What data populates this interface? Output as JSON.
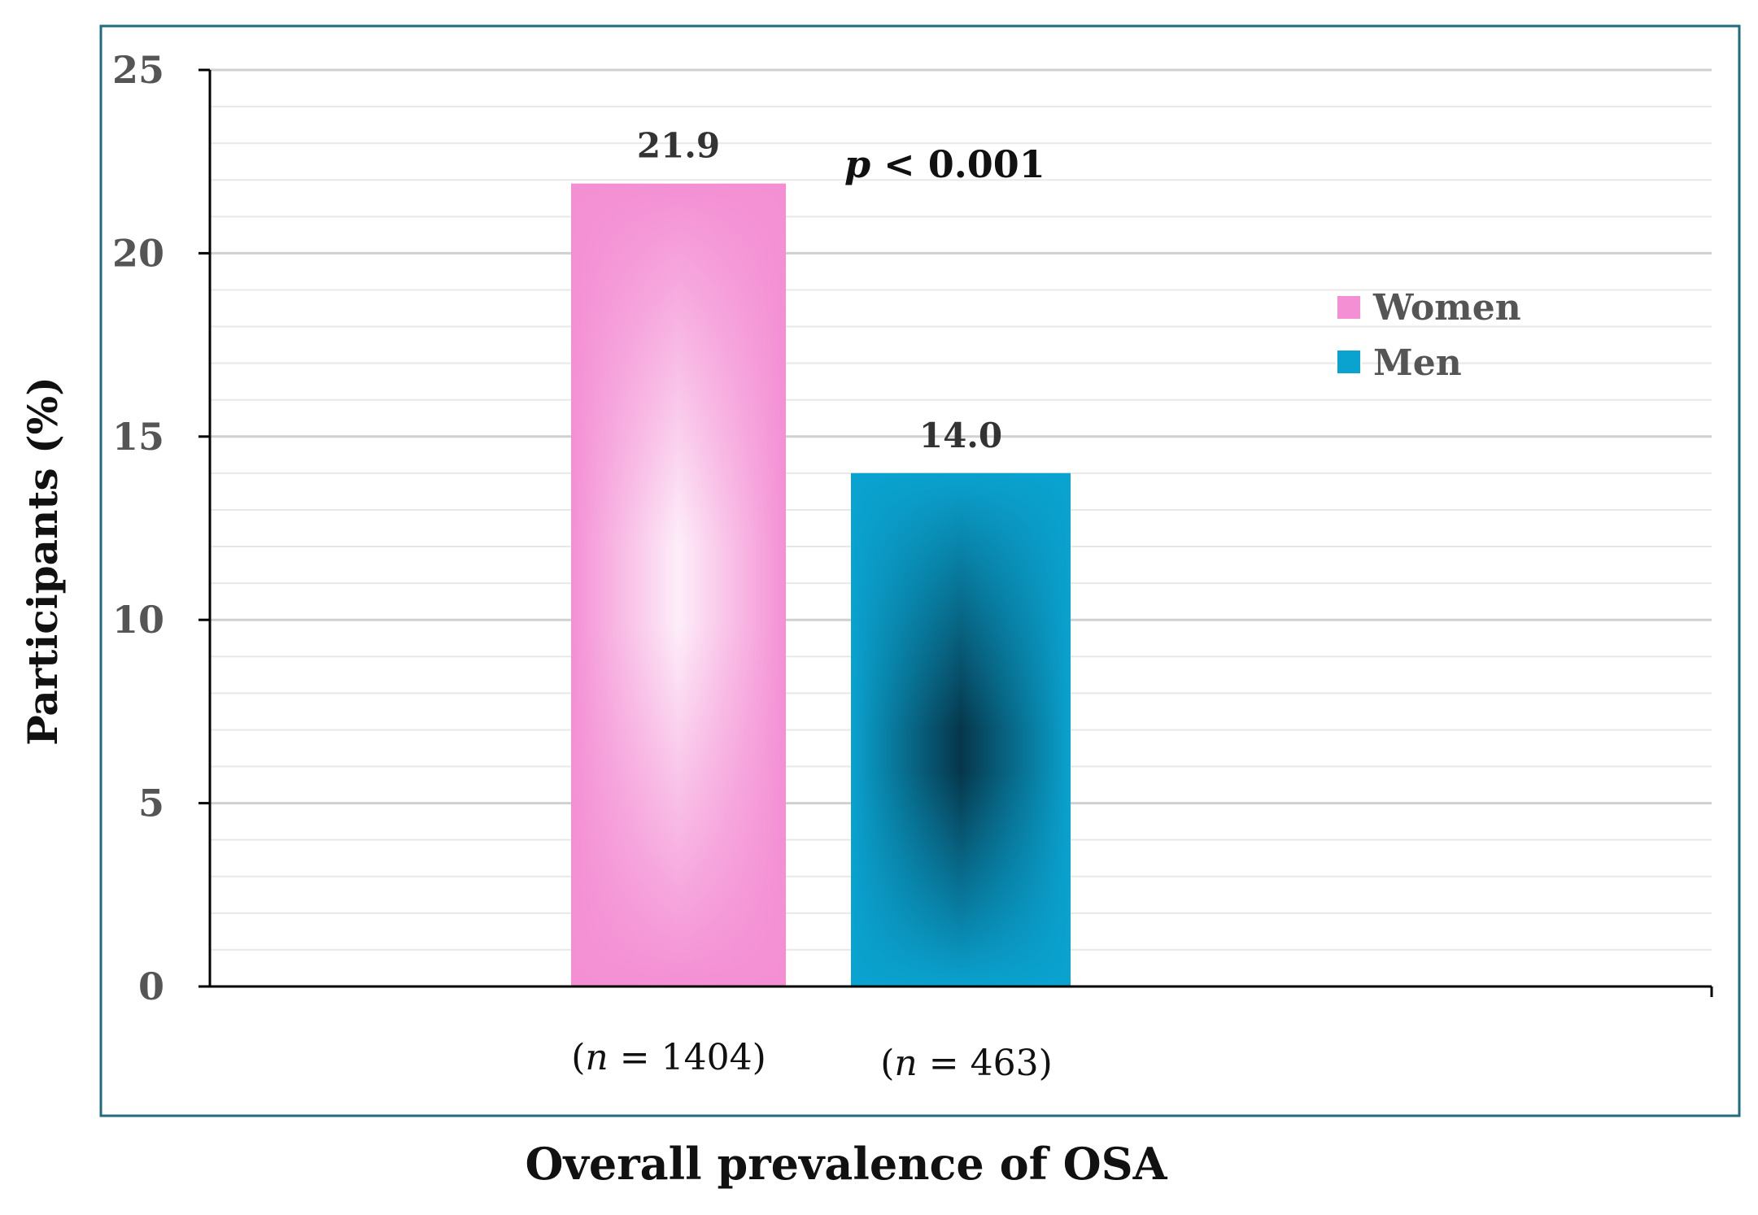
{
  "colors": {
    "frame": "#1f6b80",
    "women": "#f48fd4",
    "women_center": "#fdeef9",
    "men": "#0aa2cf",
    "men_center": "#06364a",
    "axis": "#000000",
    "grid_major": "#d0d0d0",
    "grid_minor": "#e8e8e8",
    "tick_text": "#555555"
  },
  "chart_data": {
    "type": "bar",
    "title": "",
    "xlabel": "Overall prevalence of OSA",
    "ylabel": "Participants (%)",
    "ylim": [
      0,
      25
    ],
    "yticks": [
      0,
      5,
      10,
      15,
      20,
      25
    ],
    "minor_step": 1,
    "grid": true,
    "legend_position": "right",
    "series": [
      {
        "name": "Women",
        "value": 21.9,
        "value_label": "21.9",
        "n_label": "(n = 1404)",
        "n_prefix": "(",
        "n_var": "n",
        "n_rest": " = 1404)"
      },
      {
        "name": "Men",
        "value": 14.0,
        "value_label": "14.0",
        "n_label": "(n = 463)",
        "n_prefix": "(",
        "n_var": "n",
        "n_rest": " = 463)"
      }
    ],
    "annotation": {
      "text": "p < 0.001",
      "var": "p",
      "rest": " < 0.001"
    }
  }
}
